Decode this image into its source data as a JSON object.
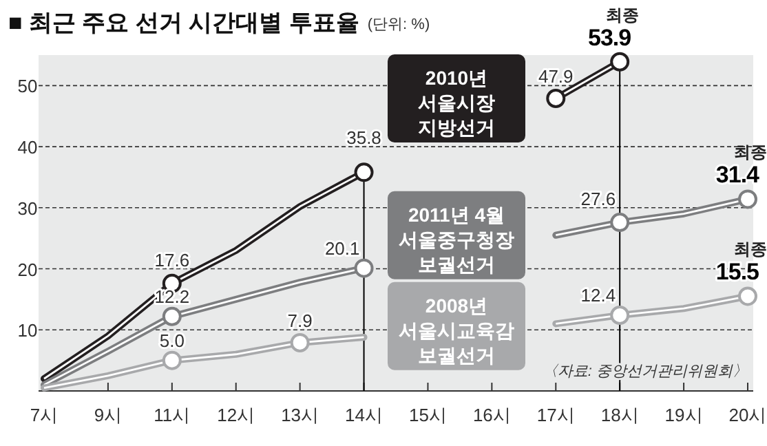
{
  "chart_data": {
    "type": "line",
    "title": "■ 최근 주요 선거 시간대별 투표율",
    "subtitle": "(단위: %)",
    "categories": [
      "7시",
      "9시",
      "11시",
      "12시",
      "13시",
      "14시",
      "15시",
      "16시",
      "17시",
      "18시",
      "19시",
      "20시"
    ],
    "series": [
      {
        "name": "2010년\n서울시장\n지방선거",
        "color": "#231f20",
        "values": [
          2.0,
          9.0,
          17.6,
          23.0,
          30.2,
          35.8,
          null,
          null,
          47.9,
          53.9,
          null,
          null
        ],
        "value_labels": [
          null,
          null,
          "17.6",
          null,
          null,
          "35.8",
          null,
          null,
          "47.9",
          "53.9",
          null,
          null
        ]
      },
      {
        "name": "2011년 4월\n서울중구청장\n보궐선거",
        "color": "#7d7e80",
        "values": [
          1.0,
          6.5,
          12.2,
          15.0,
          17.8,
          20.1,
          null,
          null,
          25.5,
          27.6,
          29.0,
          31.4
        ],
        "value_labels": [
          null,
          null,
          "12.2",
          null,
          null,
          "20.1",
          null,
          null,
          null,
          "27.6",
          null,
          "31.4"
        ]
      },
      {
        "name": "2008년\n서울시교육감\n보궐선거",
        "color": "#a8a9ab",
        "values": [
          0.5,
          2.5,
          5.0,
          6.0,
          7.9,
          8.8,
          null,
          null,
          11.0,
          12.4,
          13.5,
          15.5
        ],
        "value_labels": [
          null,
          null,
          "5.0",
          null,
          "7.9",
          null,
          null,
          null,
          null,
          "12.4",
          null,
          "15.5"
        ]
      }
    ],
    "annotations": [
      {
        "text": "최종",
        "x": "18시",
        "y": 53.9
      },
      {
        "text": "최종",
        "x": "20시",
        "y": 31.4
      },
      {
        "text": "최종",
        "x": "20시",
        "y": 15.5
      },
      "〈자료: 중앙선거관리위원회〉"
    ],
    "ref_lines": [
      {
        "axis": "x",
        "value": "14시",
        "color": "#000000"
      },
      {
        "axis": "x",
        "value": "18시",
        "color": "#000000"
      }
    ],
    "bands": [
      {
        "axis": "y",
        "from": 0,
        "to": 55,
        "color": "#e9eaea"
      }
    ],
    "ylim": [
      0,
      55
    ],
    "yticks": [
      10,
      20,
      30,
      40,
      50
    ],
    "grid": "y",
    "line_style": "solid"
  }
}
